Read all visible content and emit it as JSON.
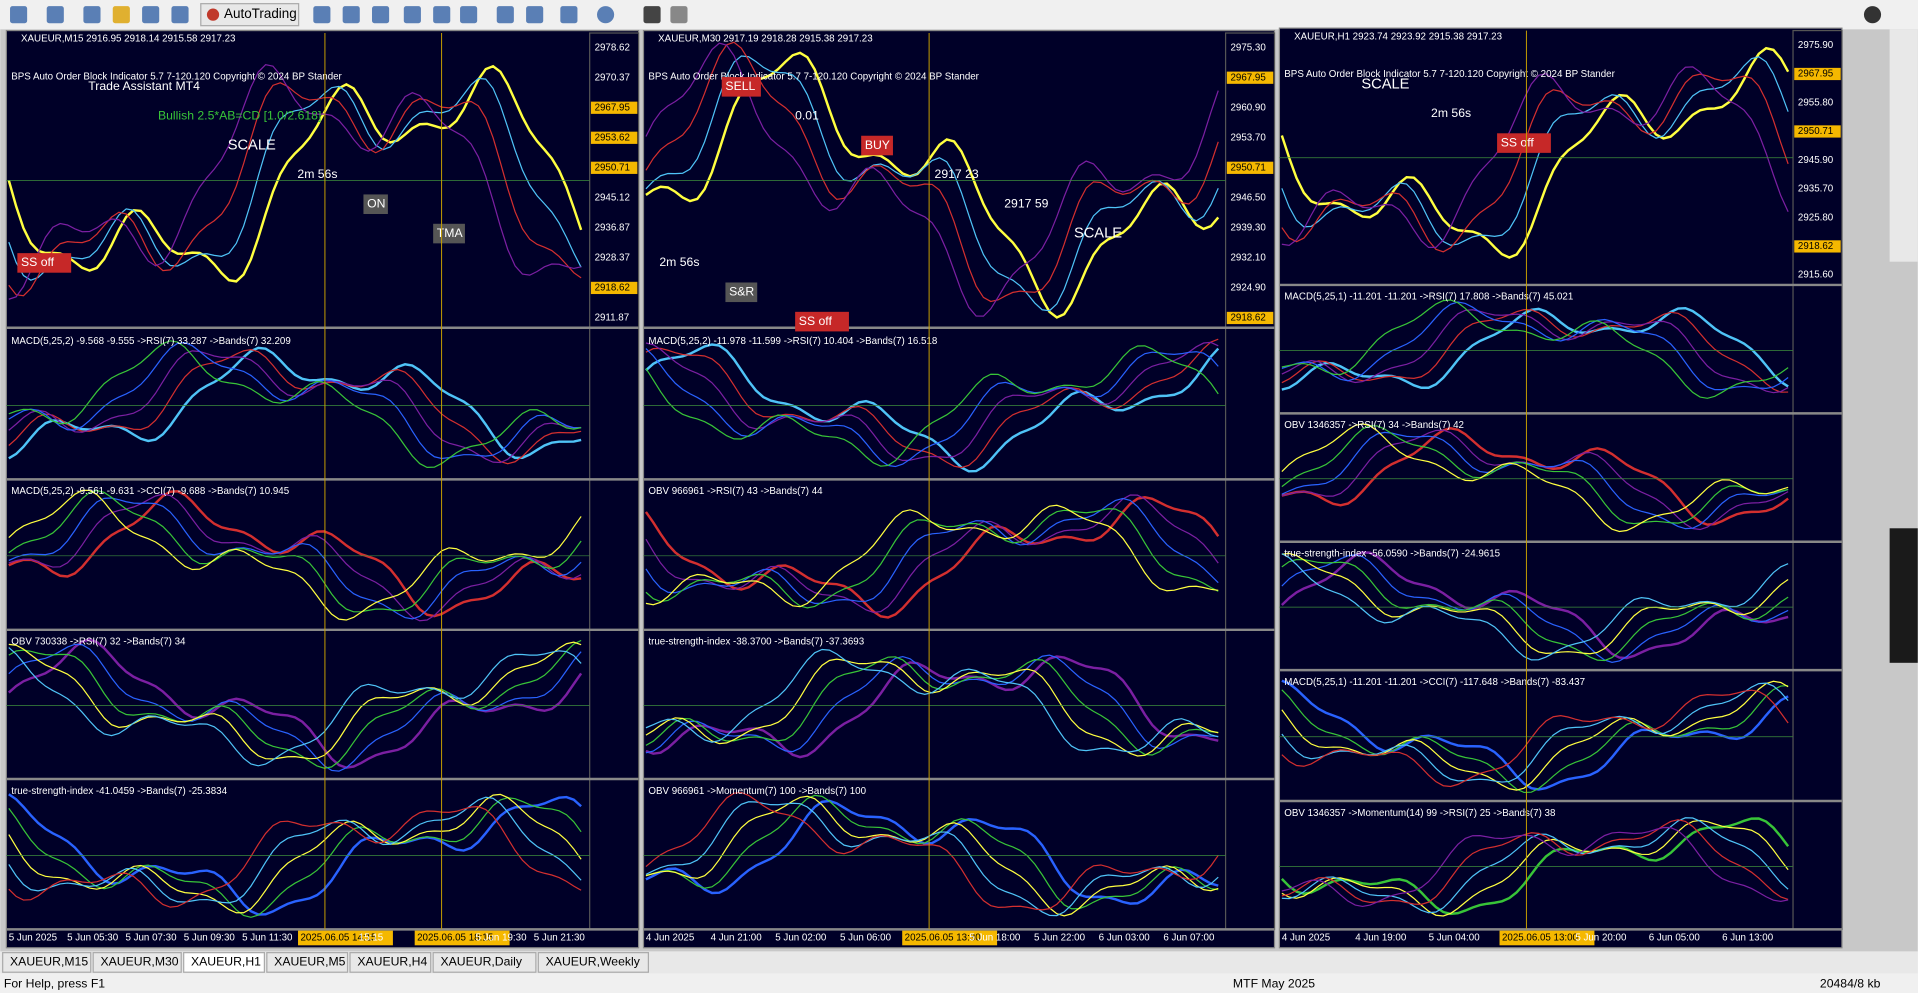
{
  "toolbar": {
    "autotrading": "AutoTrading"
  },
  "windows": [
    {
      "title": "XAUEUR,M15  2916.95 2918.14 2915.58 2917.23",
      "labels": [
        "BPS Auto Order Block Indicator  5.7 7-120.120 Copyright © 2024 BP Stander",
        "Trade Assistant MT4",
        "Bullish 2.5*AB=CD [1.0/2.618]",
        "SCALE",
        "2m 56s",
        "ON",
        "TMA",
        "SS off"
      ],
      "prices": [
        "2978.62",
        "2970.37",
        "2967.95",
        "2953.62",
        "2950.71",
        "2945.12",
        "2936.87",
        "2928.37",
        "2918.62",
        "2911.87"
      ],
      "subwindows": [
        "MACD(5,25,2) -9.568 -9.555  ->RSI(7) 33.287  ->Bands(7) 32.209",
        "MACD(5,25,2) -9.561 -9.631  ->CCI(7) -9.688  ->Bands(7) 10.945",
        "OBV 730338  ->RSI(7) 32  ->Bands(7) 34",
        "true-strength-index -41.0459  ->Bands(7) -25.3834"
      ],
      "times": [
        "5 Jun 2025",
        "5 Jun 05:30",
        "5 Jun 07:30",
        "5 Jun 09:30",
        "5 Jun 11:30",
        "2025.06.05 14:15",
        "15:15",
        "2025.06.05 18:15",
        "5 Jun 19:30",
        "5 Jun 21:30"
      ]
    },
    {
      "title": "XAUEUR,M30  2917.19 2918.28 2915.38 2917.23",
      "labels": [
        "BPS Auto Order Block Indicator  5.7 7-120.120 Copyright © 2024 BP Stander",
        "SELL",
        "0.01",
        "BUY",
        "2917 23",
        "2917 59",
        "SCALE",
        "2m 56s",
        "S&R",
        "SS off"
      ],
      "prices": [
        "2975.30",
        "2967.95",
        "2960.90",
        "2953.70",
        "2950.71",
        "2946.50",
        "2939.30",
        "2932.10",
        "2924.90",
        "2918.62"
      ],
      "subwindows": [
        "MACD(5,25,2) -11.978 -11.599  ->RSI(7) 10.404  ->Bands(7) 16.518",
        "OBV 966961  ->RSI(7) 43  ->Bands(7) 44",
        "true-strength-index -38.3700  ->Bands(7) -37.3693",
        "OBV 966961  ->Momentum(7) 100  ->Bands(7) 100"
      ],
      "times": [
        "4 Jun 2025",
        "4 Jun 21:00",
        "5 Jun 02:00",
        "5 Jun 06:00",
        "2025.06.05 13:30",
        "5 Jun 18:00",
        "5 Jun 22:00",
        "6 Jun 03:00",
        "6 Jun 07:00"
      ]
    },
    {
      "title": "XAUEUR,H1  2923.74 2923.92 2915.38 2917.23",
      "labels": [
        "BPS Auto Order Block Indicator  5.7 7-120.120 Copyright © 2024 BP Stander",
        "SCALE",
        "2m 56s",
        "SS off"
      ],
      "prices": [
        "2975.90",
        "2967.95",
        "2955.80",
        "2950.71",
        "2945.90",
        "2935.70",
        "2925.80",
        "2918.62",
        "2915.60"
      ],
      "subwindows": [
        "MACD(5,25,1) -11.201 -11.201  ->RSI(7) 17.808  ->Bands(7) 45.021",
        "OBV 1346357  ->RSI(7) 34  ->Bands(7) 42",
        "true-strength-index -56.0590  ->Bands(7) -24.9615",
        "MACD(5,25,1) -11.201 -11.201  ->CCI(7) -117.648  ->Bands(7) -83.437",
        "OBV 1346357  ->Momentum(14) 99  ->RSI(7) 25  ->Bands(7) 38"
      ],
      "times": [
        "4 Jun 2025",
        "4 Jun 19:00",
        "5 Jun 04:00",
        "2025.06.05 13:00",
        "5 Jun 20:00",
        "6 Jun 05:00",
        "6 Jun 13:00"
      ]
    }
  ],
  "tabs": [
    "XAUEUR,M15",
    "XAUEUR,M30",
    "XAUEUR,H1",
    "XAUEUR,M5",
    "XAUEUR,H4",
    "XAUEUR,Daily",
    "XAUEUR,Weekly"
  ],
  "status": {
    "help": "For Help, press F1",
    "profile": "MTF May 2025",
    "memory": "20484/8 kb"
  }
}
